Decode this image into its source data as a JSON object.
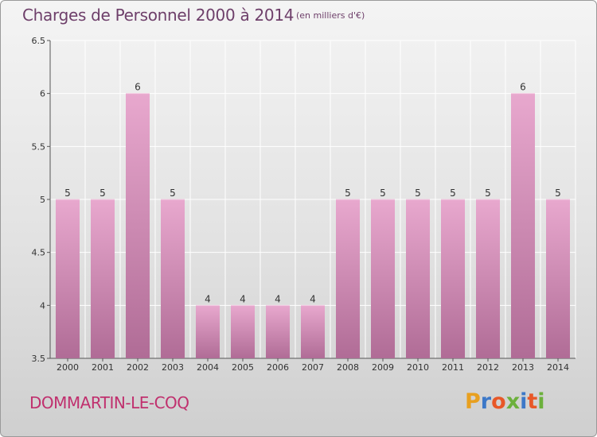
{
  "header": {
    "title": "Charges de Personnel 2000 à 2014",
    "subtitle": "(en milliers d'€)"
  },
  "footer": {
    "commune": "DOMMARTIN-LE-COQ",
    "logo_text": "Proxiti"
  },
  "colors": {
    "bar_top": "#e8a8ce",
    "bar_bottom": "#b06c96",
    "title": "#6e3f6a",
    "commune": "#c0306e",
    "logo_letters": [
      "#e8a020",
      "#3c78c8",
      "#e85828",
      "#6cb03c",
      "#3c78c8",
      "#e85828",
      "#6cb03c"
    ]
  },
  "chart_data": {
    "type": "bar",
    "title": "Charges de Personnel 2000 à 2014",
    "subtitle": "(en milliers d'€)",
    "categories": [
      "2000",
      "2001",
      "2002",
      "2003",
      "2004",
      "2005",
      "2006",
      "2007",
      "2008",
      "2009",
      "2010",
      "2011",
      "2012",
      "2013",
      "2014"
    ],
    "values": [
      5,
      5,
      6,
      5,
      4,
      4,
      4,
      4,
      5,
      5,
      5,
      5,
      5,
      6,
      5
    ],
    "data_labels": [
      "5",
      "5",
      "6",
      "5",
      "4",
      "4",
      "4",
      "4",
      "5",
      "5",
      "5",
      "5",
      "5",
      "6",
      "5"
    ],
    "ylim": [
      3.5,
      6.5
    ],
    "yticks": [
      3.5,
      4,
      4.5,
      5,
      5.5,
      6,
      6.5
    ],
    "ytick_labels": [
      "3.5",
      "4",
      "4.5",
      "5",
      "5.5",
      "6",
      "6.5"
    ],
    "grid": true,
    "legend": "none"
  }
}
